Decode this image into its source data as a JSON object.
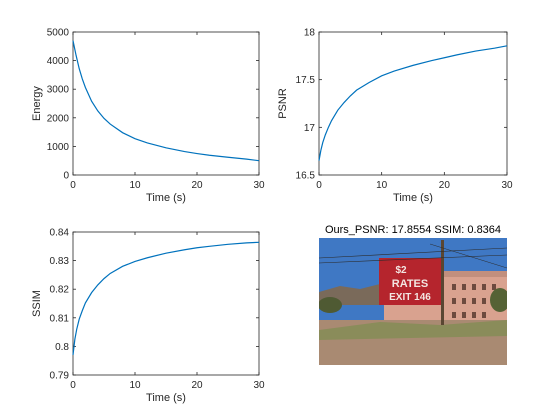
{
  "image_title": "Ours_PSNR: 17.8554  SSIM: 0.8364",
  "chart_data": [
    {
      "type": "line",
      "xlabel": "Time (s)",
      "ylabel": "Energy",
      "xlim": [
        0,
        30
      ],
      "ylim": [
        0,
        5000
      ],
      "xticks": [
        0,
        10,
        20,
        30
      ],
      "yticks": [
        0,
        1000,
        2000,
        3000,
        4000,
        5000
      ],
      "grid": false,
      "series": [
        {
          "color": "#0072bd",
          "x": [
            0,
            0.5,
            1,
            1.5,
            2,
            3,
            4,
            5,
            6,
            8,
            10,
            12,
            15,
            18,
            20,
            22,
            25,
            28,
            30
          ],
          "y": [
            4700,
            4180,
            3720,
            3360,
            3060,
            2580,
            2240,
            1980,
            1780,
            1480,
            1270,
            1120,
            950,
            820,
            750,
            690,
            620,
            555,
            500
          ]
        }
      ]
    },
    {
      "type": "line",
      "xlabel": "Time (s)",
      "ylabel": "PSNR",
      "xlim": [
        0,
        30
      ],
      "ylim": [
        16.5,
        18
      ],
      "xticks": [
        0,
        10,
        20,
        30
      ],
      "yticks": [
        16.5,
        17,
        17.5,
        18
      ],
      "grid": false,
      "series": [
        {
          "color": "#0072bd",
          "x": [
            0,
            0.3,
            0.6,
            1,
            1.5,
            2,
            3,
            4,
            5,
            6,
            8,
            10,
            12,
            15,
            18,
            20,
            22,
            25,
            28,
            30
          ],
          "y": [
            16.65,
            16.76,
            16.84,
            16.92,
            17.0,
            17.07,
            17.18,
            17.26,
            17.33,
            17.39,
            17.47,
            17.54,
            17.59,
            17.65,
            17.7,
            17.73,
            17.76,
            17.8,
            17.83,
            17.855
          ]
        }
      ]
    },
    {
      "type": "line",
      "xlabel": "Time (s)",
      "ylabel": "SSIM",
      "xlim": [
        0,
        30
      ],
      "ylim": [
        0.79,
        0.84
      ],
      "xticks": [
        0,
        10,
        20,
        30
      ],
      "yticks": [
        0.79,
        0.8,
        0.81,
        0.82,
        0.83,
        0.84
      ],
      "grid": false,
      "series": [
        {
          "color": "#0072bd",
          "x": [
            0,
            0.3,
            0.6,
            1,
            1.5,
            2,
            3,
            4,
            5,
            6,
            8,
            10,
            12,
            15,
            18,
            20,
            22,
            25,
            28,
            30
          ],
          "y": [
            0.797,
            0.8025,
            0.806,
            0.8095,
            0.8125,
            0.8152,
            0.8188,
            0.8215,
            0.8237,
            0.8255,
            0.828,
            0.8297,
            0.831,
            0.8326,
            0.8338,
            0.8345,
            0.835,
            0.8357,
            0.8362,
            0.8364
          ]
        }
      ]
    }
  ],
  "photo": {
    "sign_line1": "$2",
    "sign_line2": "RATES",
    "sign_line3": "EXIT 146",
    "colors": {
      "sky": "#3f78c4",
      "sign": "#b5252d",
      "building": "#d9a28f",
      "ground": "#a98a72",
      "grass": "#8a8c5a"
    }
  }
}
